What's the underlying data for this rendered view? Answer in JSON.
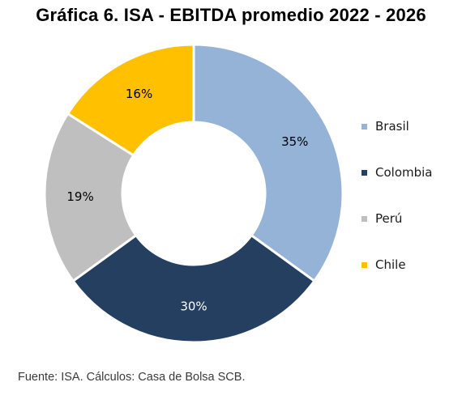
{
  "chart_data": {
    "type": "pie",
    "donut": true,
    "title": "Gráfica 6. ISA - EBITDA promedio 2022 - 2026",
    "categories": [
      "Brasil",
      "Colombia",
      "Perú",
      "Chile"
    ],
    "values": [
      35,
      30,
      19,
      16
    ],
    "value_labels": [
      "35%",
      "30%",
      "19%",
      "16%"
    ],
    "colors": [
      "#95B3D7",
      "#243F60",
      "#BFBFBF",
      "#FFC000"
    ],
    "label_colors": [
      "#000000",
      "#ffffff",
      "#000000",
      "#000000"
    ],
    "legend_position": "right",
    "start_angle": "12 o'clock",
    "direction": "clockwise"
  },
  "source": "Fuente: ISA. Cálculos: Casa de Bolsa SCB."
}
